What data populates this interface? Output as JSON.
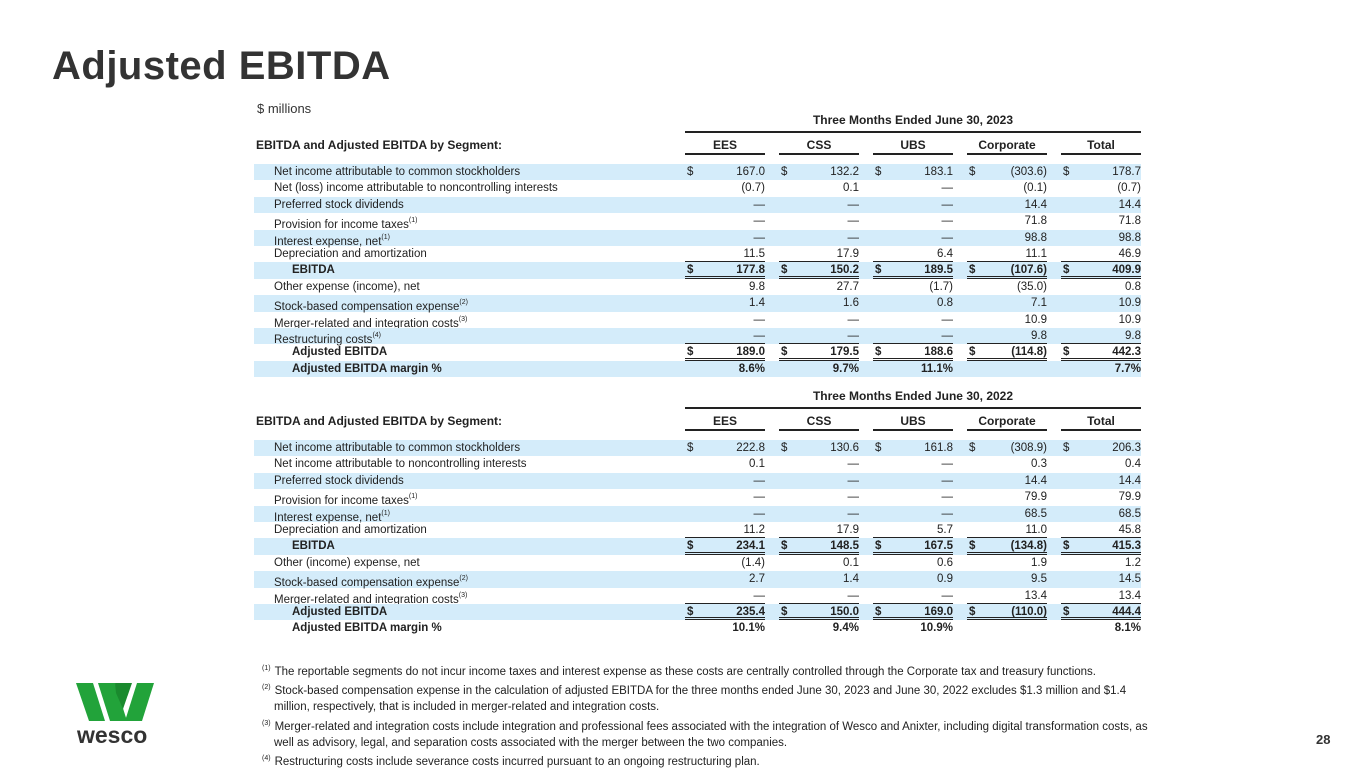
{
  "title": "Adjusted EBITDA",
  "units": "$ millions",
  "columns": [
    "EES",
    "CSS",
    "UBS",
    "Corporate",
    "Total"
  ],
  "tables": [
    {
      "period": "Three Months Ended June 30, 2023",
      "header": "EBITDA and Adjusted EBITDA by Segment:",
      "rows": [
        {
          "label": "Net income attributable to common stockholders",
          "dollar": true,
          "values": [
            "167.0",
            "132.2",
            "183.1",
            "(303.6)",
            "178.7"
          ]
        },
        {
          "label": "Net (loss) income attributable to noncontrolling interests",
          "values": [
            "(0.7)",
            "0.1",
            "—",
            "(0.1)",
            "(0.7)"
          ]
        },
        {
          "label": "Preferred stock dividends",
          "values": [
            "—",
            "—",
            "—",
            "14.4",
            "14.4"
          ]
        },
        {
          "label": "Provision for income taxes",
          "sup": "(1)",
          "values": [
            "—",
            "—",
            "—",
            "71.8",
            "71.8"
          ]
        },
        {
          "label": "Interest expense, net",
          "sup": "(1)",
          "values": [
            "—",
            "—",
            "—",
            "98.8",
            "98.8"
          ]
        },
        {
          "label": "Depreciation and amortization",
          "ul": true,
          "values": [
            "11.5",
            "17.9",
            "6.4",
            "11.1",
            "46.9"
          ]
        },
        {
          "label": "EBITDA",
          "total": true,
          "dollar": true,
          "values": [
            "177.8",
            "150.2",
            "189.5",
            "(107.6)",
            "409.9"
          ]
        },
        {
          "label": "Other expense (income), net",
          "values": [
            "9.8",
            "27.7",
            "(1.7)",
            "(35.0)",
            "0.8"
          ]
        },
        {
          "label": "Stock-based compensation expense",
          "sup": "(2)",
          "values": [
            "1.4",
            "1.6",
            "0.8",
            "7.1",
            "10.9"
          ]
        },
        {
          "label": "Merger-related and integration costs",
          "sup": "(3)",
          "values": [
            "—",
            "—",
            "—",
            "10.9",
            "10.9"
          ]
        },
        {
          "label": "Restructuring costs",
          "sup": "(4)",
          "ul": true,
          "values": [
            "—",
            "—",
            "—",
            "9.8",
            "9.8"
          ]
        },
        {
          "label": "Adjusted EBITDA",
          "total": true,
          "dollar": true,
          "values": [
            "189.0",
            "179.5",
            "188.6",
            "(114.8)",
            "442.3"
          ]
        },
        {
          "label": "Adjusted EBITDA margin %",
          "margin": true,
          "values": [
            "8.6%",
            "9.7%",
            "11.1%",
            "",
            "7.7%"
          ]
        }
      ]
    },
    {
      "period": "Three Months Ended June 30, 2022",
      "header": "EBITDA and Adjusted EBITDA by Segment:",
      "rows": [
        {
          "label": "Net income attributable to common stockholders",
          "dollar": true,
          "values": [
            "222.8",
            "130.6",
            "161.8",
            "(308.9)",
            "206.3"
          ]
        },
        {
          "label": "Net income attributable to noncontrolling interests",
          "values": [
            "0.1",
            "—",
            "—",
            "0.3",
            "0.4"
          ]
        },
        {
          "label": "Preferred stock dividends",
          "values": [
            "—",
            "—",
            "—",
            "14.4",
            "14.4"
          ]
        },
        {
          "label": "Provision for income taxes",
          "sup": "(1)",
          "values": [
            "—",
            "—",
            "—",
            "79.9",
            "79.9"
          ]
        },
        {
          "label": "Interest expense, net",
          "sup": "(1)",
          "values": [
            "—",
            "—",
            "—",
            "68.5",
            "68.5"
          ]
        },
        {
          "label": "Depreciation and amortization",
          "ul": true,
          "values": [
            "11.2",
            "17.9",
            "5.7",
            "11.0",
            "45.8"
          ]
        },
        {
          "label": "EBITDA",
          "total": true,
          "dollar": true,
          "values": [
            "234.1",
            "148.5",
            "167.5",
            "(134.8)",
            "415.3"
          ]
        },
        {
          "label": "Other (income) expense, net",
          "values": [
            "(1.4)",
            "0.1",
            "0.6",
            "1.9",
            "1.2"
          ]
        },
        {
          "label": "Stock-based compensation expense",
          "sup": "(2)",
          "values": [
            "2.7",
            "1.4",
            "0.9",
            "9.5",
            "14.5"
          ]
        },
        {
          "label": "Merger-related and integration costs",
          "sup": "(3)",
          "ul": true,
          "values": [
            "—",
            "—",
            "—",
            "13.4",
            "13.4"
          ]
        },
        {
          "label": "Adjusted EBITDA",
          "total": true,
          "dollar": true,
          "values": [
            "235.4",
            "150.0",
            "169.0",
            "(110.0)",
            "444.4"
          ]
        },
        {
          "label": "Adjusted EBITDA margin %",
          "margin": true,
          "values": [
            "10.1%",
            "9.4%",
            "10.9%",
            "",
            "8.1%"
          ]
        }
      ]
    }
  ],
  "footnotes": [
    {
      "mark": "(1)",
      "text": "The reportable segments do not incur income taxes and interest expense as these costs are centrally controlled through the Corporate tax and treasury functions."
    },
    {
      "mark": "(2)",
      "text": "Stock-based compensation expense in the calculation of adjusted EBITDA for the three months ended June 30, 2023 and June 30, 2022 excludes $1.3 million and $1.4 million, respectively, that is included in merger-related and integration costs."
    },
    {
      "mark": "(3)",
      "text": "Merger-related and integration costs include integration and professional fees associated with the integration of Wesco and Anixter, including digital transformation costs, as well as advisory, legal, and separation costs associated with the merger between the two companies."
    },
    {
      "mark": "(4)",
      "text": "Restructuring costs include severance costs incurred pursuant to an ongoing restructuring plan."
    }
  ],
  "logo": {
    "text": "wesco",
    "color": "#22a33a"
  },
  "page_number": "28"
}
